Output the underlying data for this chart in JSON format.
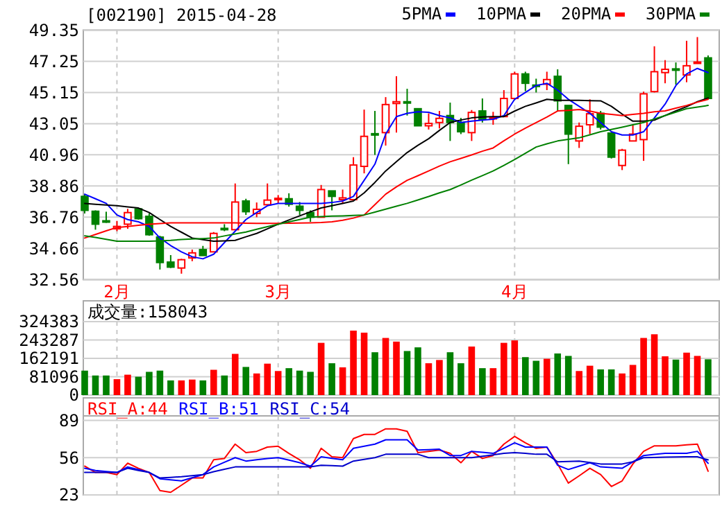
{
  "chart_data": [
    {
      "type": "candlestick",
      "title": "[002190] 2015-04-28",
      "categories": [
        null,
        null,
        null,
        "2月",
        null,
        null,
        null,
        null,
        null,
        null,
        null,
        null,
        null,
        null,
        null,
        null,
        null,
        null,
        "3月",
        null,
        null,
        null,
        null,
        null,
        null,
        null,
        null,
        null,
        null,
        null,
        null,
        null,
        null,
        null,
        null,
        null,
        null,
        null,
        null,
        null,
        "4月",
        null,
        null,
        null,
        null,
        null,
        null,
        null,
        null,
        null,
        null,
        null,
        null,
        null,
        null,
        null,
        null,
        null,
        null
      ],
      "ylim": [
        32.56,
        49.35
      ],
      "yticks": [
        32.56,
        34.66,
        36.76,
        38.86,
        40.96,
        43.05,
        45.15,
        47.25,
        49.35
      ],
      "grid": true,
      "legend": "top right",
      "series": [
        {
          "colors": [
            "#008000",
            "#008000",
            "#008000",
            "#ff0000",
            "#ff0000",
            "#008000",
            "#008000",
            "#008000",
            "#008000",
            "#ff0000",
            "#ff0000",
            "#008000",
            "#ff0000",
            "#008000",
            "#ff0000",
            "#008000",
            "#ff0000",
            "#ff0000",
            "#ff0000",
            "#008000",
            "#008000",
            "#008000",
            "#ff0000",
            "#008000",
            "#ff0000",
            "#ff0000",
            "#ff0000",
            "#008000",
            "#ff0000",
            "#ff0000",
            "#008000",
            "#008000",
            "#ff0000",
            "#ff0000",
            "#008000",
            "#008000",
            "#ff0000",
            "#008000",
            "#ff0000",
            "#ff0000",
            "#ff0000",
            "#008000",
            "#008000",
            "#ff0000",
            "#008000",
            "#008000",
            "#ff0000",
            "#ff0000",
            "#008000",
            "#008000",
            "#ff0000",
            "#ff0000",
            "#ff0000",
            "#ff0000",
            "#ff0000",
            "#008000",
            "#ff0000",
            "#ff0000",
            "#008000"
          ],
          "ohlc": [
            [
              38.16,
              38.31,
              37.01,
              37.22
            ],
            [
              37.16,
              37.22,
              35.92,
              36.29
            ],
            [
              36.52,
              37.13,
              36.38,
              36.45
            ],
            [
              35.98,
              36.51,
              35.82,
              36.14
            ],
            [
              36.29,
              37.32,
              35.98,
              37.07
            ],
            [
              37.32,
              37.38,
              36.6,
              36.66
            ],
            [
              36.82,
              37.01,
              35.51,
              35.58
            ],
            [
              35.42,
              35.51,
              33.24,
              33.71
            ],
            [
              33.74,
              34.21,
              33.34,
              33.4
            ],
            [
              33.34,
              33.96,
              32.96,
              33.9
            ],
            [
              34.02,
              34.58,
              33.8,
              34.36
            ],
            [
              34.58,
              34.83,
              34.18,
              34.18
            ],
            [
              34.43,
              35.76,
              34.43,
              35.67
            ],
            [
              36.01,
              36.29,
              35.82,
              35.95
            ],
            [
              35.92,
              39.03,
              35.92,
              37.78
            ],
            [
              37.85,
              38.0,
              36.91,
              37.13
            ],
            [
              37.01,
              37.75,
              36.76,
              37.29
            ],
            [
              37.6,
              39.03,
              37.6,
              37.91
            ],
            [
              37.97,
              38.25,
              37.69,
              38.03
            ],
            [
              38.0,
              38.37,
              37.47,
              37.63
            ],
            [
              37.5,
              37.78,
              36.91,
              37.22
            ],
            [
              37.07,
              37.22,
              36.45,
              36.76
            ],
            [
              36.76,
              38.93,
              36.76,
              38.62
            ],
            [
              38.53,
              38.53,
              37.22,
              38.16
            ],
            [
              37.94,
              38.62,
              37.69,
              38.06
            ],
            [
              37.94,
              40.8,
              37.85,
              40.27
            ],
            [
              40.18,
              44.0,
              39.71,
              42.2
            ],
            [
              42.38,
              43.91,
              40.95,
              42.29
            ],
            [
              42.45,
              44.84,
              41.58,
              44.34
            ],
            [
              44.41,
              46.24,
              42.45,
              44.53
            ],
            [
              44.53,
              45.4,
              43.6,
              44.44
            ],
            [
              44.06,
              44.06,
              42.91,
              42.91
            ],
            [
              42.91,
              43.75,
              42.66,
              43.07
            ],
            [
              43.13,
              43.91,
              42.73,
              43.41
            ],
            [
              43.6,
              44.47,
              41.89,
              43.13
            ],
            [
              43.13,
              43.44,
              42.35,
              42.51
            ],
            [
              42.45,
              43.97,
              41.89,
              43.81
            ],
            [
              43.91,
              44.75,
              43.13,
              43.35
            ],
            [
              43.41,
              43.85,
              42.98,
              43.47
            ],
            [
              43.53,
              45.31,
              43.53,
              44.75
            ],
            [
              44.75,
              46.55,
              44.69,
              46.4
            ],
            [
              46.4,
              46.55,
              45.24,
              45.77
            ],
            [
              45.65,
              46.08,
              45.15,
              45.59
            ],
            [
              45.71,
              46.55,
              45.31,
              46.02
            ],
            [
              46.24,
              46.71,
              43.91,
              44.59
            ],
            [
              44.28,
              44.28,
              40.33,
              42.35
            ],
            [
              41.89,
              43.13,
              41.42,
              42.88
            ],
            [
              42.98,
              44.69,
              42.35,
              43.72
            ],
            [
              43.75,
              43.91,
              42.66,
              42.82
            ],
            [
              42.42,
              42.42,
              40.71,
              40.8
            ],
            [
              40.24,
              41.36,
              39.93,
              41.27
            ],
            [
              41.89,
              42.98,
              41.89,
              42.35
            ],
            [
              41.98,
              45.21,
              40.55,
              45.06
            ],
            [
              45.21,
              48.26,
              45.15,
              46.55
            ],
            [
              46.49,
              47.33,
              45.77,
              46.71
            ],
            [
              46.74,
              47.17,
              45.68,
              46.68
            ],
            [
              46.33,
              48.63,
              45.84,
              46.95
            ],
            [
              47.14,
              48.88,
              47.14,
              47.2
            ],
            [
              47.48,
              47.64,
              44.75,
              44.75
            ]
          ]
        },
        {
          "type": "line",
          "name": "5PMA",
          "color": "#0000ff",
          "values": [
            38.31,
            38.0,
            37.69,
            36.91,
            36.6,
            36.45,
            36.14,
            35.36,
            34.85,
            34.43,
            34.1,
            33.96,
            34.27,
            35.05,
            35.82,
            36.6,
            37.07,
            37.53,
            37.69,
            37.69,
            37.69,
            37.69,
            37.69,
            37.75,
            37.85,
            38.16,
            39.24,
            40.33,
            42.35,
            43.53,
            43.75,
            43.85,
            43.82,
            43.6,
            43.44,
            43.13,
            43.22,
            43.29,
            43.35,
            43.6,
            44.69,
            45.15,
            45.62,
            45.77,
            45.31,
            44.69,
            44.22,
            43.75,
            43.13,
            42.51,
            42.29,
            42.29,
            42.51,
            43.44,
            44.37,
            45.62,
            46.4,
            46.77,
            46.49
          ]
        },
        {
          "type": "line",
          "name": "10PMA",
          "color": "#000000",
          "values": [
            37.69,
            37.63,
            37.58,
            37.53,
            37.45,
            37.38,
            37.07,
            36.6,
            36.14,
            35.75,
            35.36,
            35.25,
            35.14,
            35.17,
            35.2,
            35.44,
            35.67,
            35.98,
            36.29,
            36.57,
            36.85,
            37.12,
            37.38,
            37.53,
            37.69,
            37.85,
            38.4,
            39.1,
            39.87,
            40.5,
            41.11,
            41.6,
            42.04,
            42.6,
            43.13,
            43.3,
            43.44,
            43.5,
            43.53,
            43.53,
            43.9,
            44.22,
            44.45,
            44.69,
            44.62,
            44.62,
            44.62,
            44.6,
            44.59,
            44.22,
            43.7,
            43.22,
            43.22,
            43.29,
            43.6,
            43.91,
            44.2,
            44.53,
            44.78
          ]
        },
        {
          "type": "line",
          "name": "20PMA",
          "color": "#ff0000",
          "values": [
            35.36,
            35.6,
            35.84,
            36.07,
            36.14,
            36.22,
            36.29,
            36.33,
            36.38,
            36.38,
            36.38,
            36.38,
            36.38,
            36.38,
            36.38,
            36.36,
            36.35,
            36.35,
            36.35,
            36.36,
            36.37,
            36.38,
            36.4,
            36.45,
            36.55,
            36.7,
            36.91,
            37.6,
            38.31,
            38.8,
            39.24,
            39.55,
            39.87,
            40.2,
            40.49,
            40.72,
            40.95,
            41.2,
            41.42,
            41.9,
            42.35,
            42.75,
            43.13,
            43.5,
            43.91,
            43.95,
            44.0,
            43.9,
            43.75,
            43.68,
            43.6,
            43.68,
            43.75,
            43.85,
            43.91,
            44.1,
            44.28,
            44.5,
            44.69
          ]
        },
        {
          "type": "line",
          "name": "30PMA",
          "color": "#008000",
          "values": [
            35.51,
            35.4,
            35.27,
            35.14,
            35.14,
            35.14,
            35.14,
            35.17,
            35.2,
            35.26,
            35.29,
            35.32,
            35.36,
            35.5,
            35.63,
            35.76,
            35.95,
            36.12,
            36.29,
            36.45,
            36.6,
            36.76,
            36.8,
            36.83,
            36.85,
            36.88,
            36.91,
            37.1,
            37.3,
            37.5,
            37.69,
            37.92,
            38.15,
            38.4,
            38.62,
            38.93,
            39.25,
            39.56,
            39.87,
            40.25,
            40.64,
            41.06,
            41.48,
            41.7,
            41.89,
            42.0,
            42.1,
            42.3,
            42.51,
            42.66,
            42.82,
            42.98,
            43.13,
            43.37,
            43.6,
            43.83,
            44.06,
            44.17,
            44.28
          ]
        }
      ]
    },
    {
      "type": "bar",
      "categories": [
        null,
        null,
        null,
        null,
        null,
        null,
        null,
        null,
        null,
        null,
        null,
        null,
        null,
        null,
        null,
        null,
        null,
        null,
        null,
        null,
        null,
        null,
        null,
        null,
        null,
        null,
        null,
        null,
        null,
        null,
        null,
        null,
        null,
        null,
        null,
        null,
        null,
        null,
        null,
        null,
        null,
        null,
        null,
        null,
        null,
        null,
        null,
        null,
        null,
        null,
        null,
        null,
        null,
        null,
        null,
        null,
        null,
        null,
        null
      ],
      "tick_labels": "y",
      "ylim": [
        0,
        324383
      ],
      "yticks": [
        0,
        81096,
        162191,
        243287,
        324383
      ],
      "grid": true,
      "legend": "top left",
      "series": [
        {
          "name": "成交量:158043",
          "colors": [
            "#008000",
            "#008000",
            "#008000",
            "#ff0000",
            "#ff0000",
            "#008000",
            "#008000",
            "#008000",
            "#008000",
            "#ff0000",
            "#ff0000",
            "#008000",
            "#ff0000",
            "#008000",
            "#ff0000",
            "#008000",
            "#ff0000",
            "#ff0000",
            "#ff0000",
            "#008000",
            "#008000",
            "#008000",
            "#ff0000",
            "#008000",
            "#ff0000",
            "#ff0000",
            "#ff0000",
            "#008000",
            "#ff0000",
            "#ff0000",
            "#008000",
            "#008000",
            "#ff0000",
            "#ff0000",
            "#008000",
            "#008000",
            "#ff0000",
            "#008000",
            "#ff0000",
            "#ff0000",
            "#ff0000",
            "#008000",
            "#008000",
            "#ff0000",
            "#008000",
            "#008000",
            "#ff0000",
            "#ff0000",
            "#008000",
            "#008000",
            "#ff0000",
            "#ff0000",
            "#ff0000",
            "#ff0000",
            "#ff0000",
            "#008000",
            "#ff0000",
            "#ff0000",
            "#008000"
          ],
          "values": [
            108000,
            86500,
            86500,
            70300,
            90100,
            81100,
            102700,
            108100,
            64900,
            64900,
            68500,
            64900,
            111700,
            86500,
            182000,
            124300,
            95500,
            138800,
            106300,
            118900,
            108100,
            102700,
            230700,
            140600,
            122500,
            284700,
            275700,
            189200,
            252300,
            236100,
            194600,
            210800,
            140600,
            155000,
            189200,
            140600,
            214400,
            118900,
            118900,
            230700,
            241500,
            167600,
            151400,
            160400,
            183800,
            173000,
            106300,
            129700,
            113500,
            113500,
            95500,
            133300,
            252300,
            268500,
            171200,
            156800,
            187400,
            173000,
            158043
          ]
        }
      ]
    },
    {
      "type": "line",
      "categories": [
        null,
        null,
        null,
        null,
        null,
        null,
        null,
        null,
        null,
        null,
        null,
        null,
        null,
        null,
        null,
        null,
        null,
        null,
        null,
        null,
        null,
        null,
        null,
        null,
        null,
        null,
        null,
        null,
        null,
        null,
        null,
        null,
        null,
        null,
        null,
        null,
        null,
        null,
        null,
        null,
        null,
        null,
        null,
        null,
        null,
        null,
        null,
        null,
        null,
        null,
        null,
        null,
        null,
        null,
        null,
        null,
        null,
        null,
        null
      ],
      "tick_labels": "y",
      "ylim": [
        23,
        93
      ],
      "yticks": [
        23,
        56,
        89
      ],
      "grid": true,
      "legend": "top left",
      "series": [
        {
          "name": "RSI_A:44",
          "color": "#ff0000",
          "values": [
            48.5,
            42.9,
            42.9,
            41,
            51.1,
            46.6,
            42.9,
            26.8,
            25.3,
            31.6,
            38,
            38,
            54.1,
            55.3,
            68,
            60.5,
            61.6,
            65.4,
            66.1,
            59.8,
            54.1,
            46.6,
            64.3,
            56.8,
            56,
            72.9,
            76.6,
            76.6,
            81.5,
            81.5,
            79.3,
            60.5,
            61.6,
            62.8,
            59.8,
            51.5,
            61.6,
            55.3,
            57.9,
            68,
            74.8,
            69.1,
            64.3,
            65.4,
            50.4,
            33.5,
            39.9,
            46.6,
            41,
            30.5,
            35.4,
            50.4,
            61.6,
            66.5,
            66.5,
            66.5,
            67.3,
            68,
            44
          ]
        },
        {
          "name": "RSI_B:51",
          "color": "#0000ff",
          "values": [
            46.6,
            44.7,
            43.8,
            42.9,
            47.8,
            45.4,
            42.9,
            37.3,
            36.3,
            35.4,
            38.2,
            41,
            47.8,
            51.9,
            56,
            53,
            54.1,
            55.3,
            56,
            53.8,
            51.5,
            48.5,
            56.8,
            55.4,
            54.1,
            64.3,
            66.2,
            68,
            71.8,
            71.8,
            71.8,
            62.8,
            63.1,
            63.5,
            57.9,
            57.9,
            61.6,
            60.7,
            59.8,
            64.4,
            69.1,
            65.4,
            65.4,
            65.4,
            49.3,
            45.5,
            48.5,
            51.5,
            47.8,
            47.2,
            46.6,
            52.3,
            57.9,
            58.9,
            59.8,
            59.8,
            59.8,
            61.6,
            51
          ]
        },
        {
          "name": "RSI_C:54",
          "color": "#0000cc",
          "values": [
            42.9,
            42.9,
            42.9,
            42.9,
            46.6,
            44.7,
            42.9,
            38,
            38.5,
            39.1,
            40,
            41,
            43.6,
            45.7,
            47.8,
            47.8,
            47.8,
            47.8,
            47.8,
            47.8,
            47.8,
            47.8,
            49.3,
            48.9,
            48.5,
            53,
            54.5,
            56,
            59,
            59,
            59,
            59,
            56,
            56,
            56,
            56,
            56,
            57.3,
            58.5,
            59.8,
            60.5,
            59.8,
            59,
            59,
            52.3,
            52.6,
            53,
            51.7,
            50.4,
            50.4,
            50.4,
            52.3,
            56,
            56.2,
            56.4,
            56.6,
            56.8,
            56.8,
            54
          ]
        }
      ]
    }
  ]
}
